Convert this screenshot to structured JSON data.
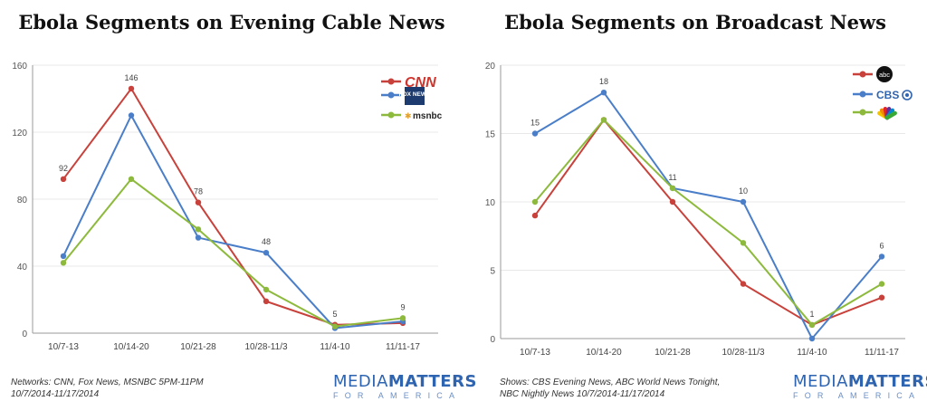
{
  "chart_data": [
    {
      "type": "line",
      "title": "Ebola Segments on Evening Cable News",
      "categories": [
        "10/7-13",
        "10/14-20",
        "10/21-28",
        "10/28-11/3",
        "11/4-10",
        "11/11-17"
      ],
      "ylim": [
        0,
        160
      ],
      "yticks": [
        0,
        40,
        80,
        120,
        160
      ],
      "grid": "horizontal",
      "legend_position": "top-right",
      "series": [
        {
          "name": "CNN",
          "color": "#c8413b",
          "values": [
            92,
            146,
            78,
            19,
            5,
            6
          ]
        },
        {
          "name": "Fox News",
          "color": "#4a7ec9",
          "values": [
            46,
            130,
            57,
            48,
            3,
            7
          ]
        },
        {
          "name": "MSNBC",
          "color": "#8dba3c",
          "values": [
            42,
            92,
            62,
            26,
            4,
            9
          ]
        }
      ],
      "data_labels": [
        {
          "series": 0,
          "index": 0,
          "text": "92"
        },
        {
          "series": 0,
          "index": 1,
          "text": "146"
        },
        {
          "series": 0,
          "index": 2,
          "text": "78"
        },
        {
          "series": 1,
          "index": 3,
          "text": "48"
        },
        {
          "series": 0,
          "index": 4,
          "text": "5"
        },
        {
          "series": 2,
          "index": 5,
          "text": "9"
        }
      ],
      "legend_icons": [
        "cnn-logo-icon",
        "fox-news-logo-icon",
        "msnbc-logo-icon"
      ],
      "legend_text": [
        "CNN",
        "FOX NEWS",
        "msnbc"
      ]
    },
    {
      "type": "line",
      "title": "Ebola Segments on Broadcast News",
      "categories": [
        "10/7-13",
        "10/14-20",
        "10/21-28",
        "10/28-11/3",
        "11/4-10",
        "11/11-17"
      ],
      "ylim": [
        0,
        20
      ],
      "yticks": [
        0,
        5,
        10,
        15,
        20
      ],
      "grid": "horizontal",
      "legend_position": "top-right",
      "series": [
        {
          "name": "ABC",
          "color": "#c8413b",
          "values": [
            9,
            16,
            10,
            4,
            1,
            3
          ]
        },
        {
          "name": "CBS",
          "color": "#4a7ec9",
          "values": [
            15,
            18,
            11,
            10,
            0,
            6
          ]
        },
        {
          "name": "NBC",
          "color": "#8dba3c",
          "values": [
            10,
            16,
            11,
            7,
            1,
            4
          ]
        }
      ],
      "data_labels": [
        {
          "series": 1,
          "index": 0,
          "text": "15"
        },
        {
          "series": 1,
          "index": 1,
          "text": "18"
        },
        {
          "series": 1,
          "index": 2,
          "text": "11"
        },
        {
          "series": 1,
          "index": 3,
          "text": "10"
        },
        {
          "series": 2,
          "index": 4,
          "text": "1"
        },
        {
          "series": 1,
          "index": 5,
          "text": "6"
        }
      ],
      "legend_icons": [
        "abc-logo-icon",
        "cbs-logo-icon",
        "nbc-peacock-icon"
      ],
      "legend_text": [
        "abc",
        "CBS",
        ""
      ]
    }
  ],
  "captions": {
    "left_line1": "Networks: CNN, Fox News, MSNBC 5PM-11PM",
    "left_line2": "10/7/2014-11/17/2014",
    "right_line1": "Shows: CBS Evening News, ABC World News Tonight,",
    "right_line2": "NBC Nightly News 10/7/2014-11/17/2014"
  },
  "logo": {
    "media": "MEDIA",
    "matters": "MATTERS",
    "sub": "FOR AMERICA"
  }
}
